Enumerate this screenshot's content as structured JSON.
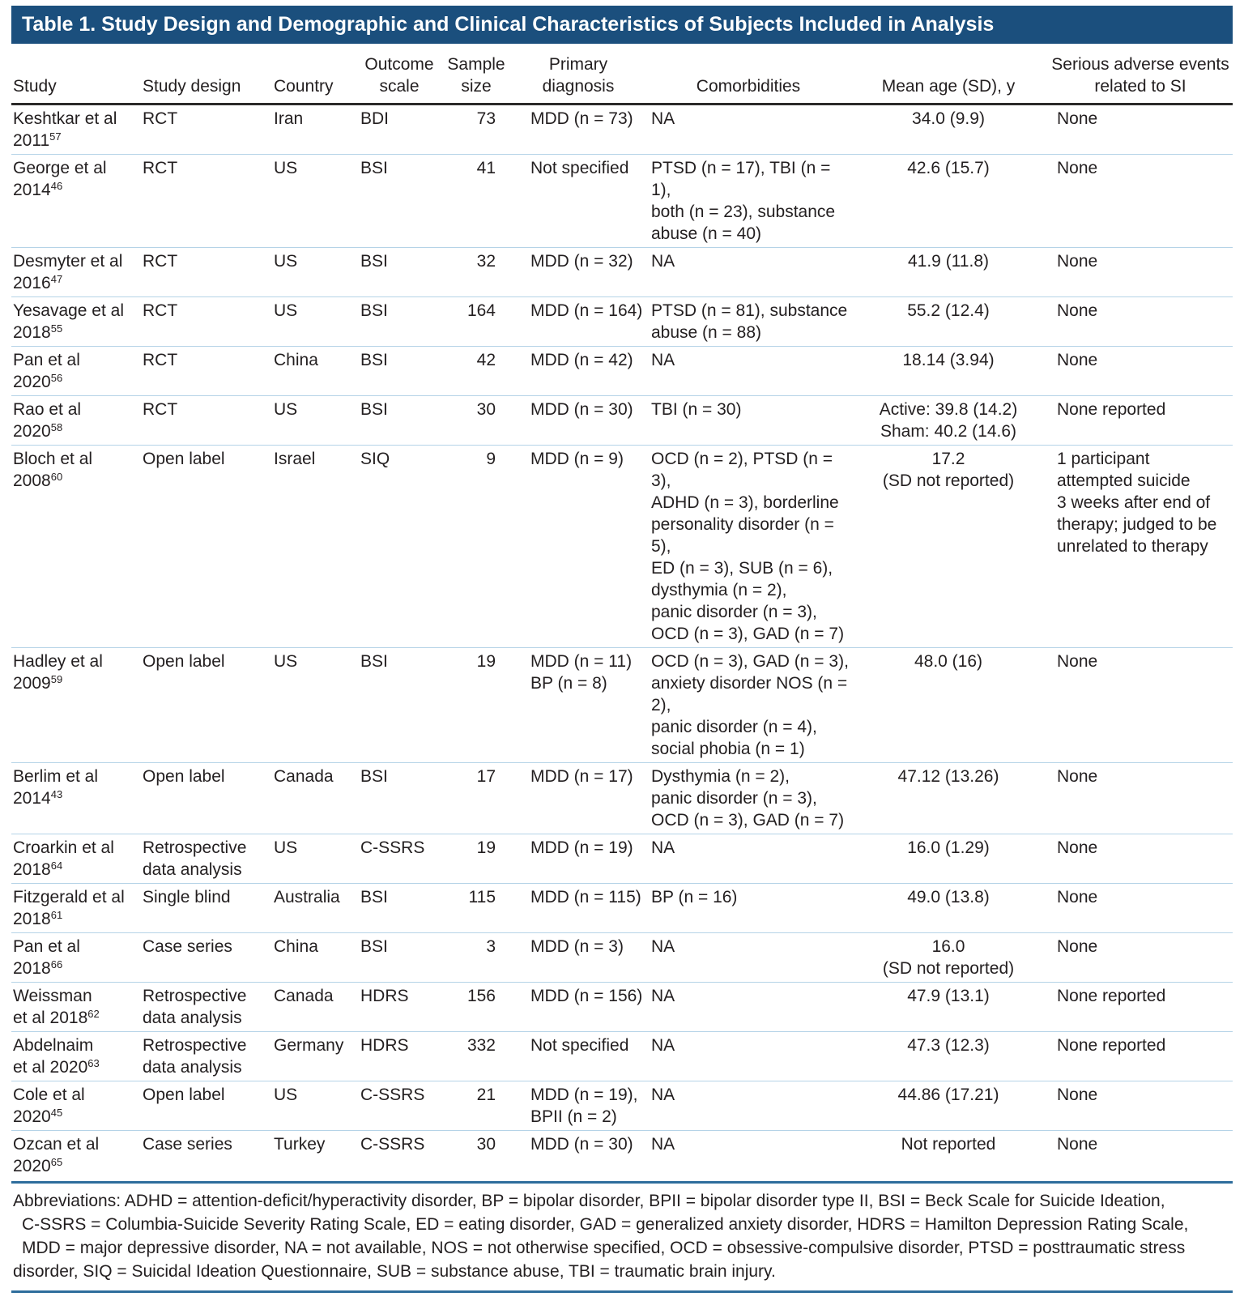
{
  "title": "Table 1. Study Design and Demographic and Clinical Characteristics of Subjects Included in Analysis",
  "table": {
    "columns": [
      {
        "key": "study",
        "label": "Study"
      },
      {
        "key": "design",
        "label": "Study design"
      },
      {
        "key": "country",
        "label": "Country"
      },
      {
        "key": "scale",
        "label": "Outcome\nscale"
      },
      {
        "key": "n",
        "label": "Sample\nsize"
      },
      {
        "key": "dx",
        "label": "Primary\ndiagnosis"
      },
      {
        "key": "comorb",
        "label": "Comorbidities"
      },
      {
        "key": "age",
        "label": "Mean age (SD), y"
      },
      {
        "key": "adverse",
        "label": "Serious adverse events\nrelated to SI"
      }
    ],
    "rows": [
      {
        "study": "Keshtkar et al\n2011",
        "ref": "57",
        "design": "RCT",
        "country": "Iran",
        "scale": "BDI",
        "n": "73",
        "dx": "MDD (n = 73)",
        "comorb": "NA",
        "age": "34.0 (9.9)",
        "adverse": "None"
      },
      {
        "study": "George et al\n2014",
        "ref": "46",
        "design": "RCT",
        "country": "US",
        "scale": "BSI",
        "n": "41",
        "dx": "Not specified",
        "comorb": "PTSD (n = 17), TBI (n = 1),\nboth (n = 23), substance\nabuse (n = 40)",
        "age": "42.6 (15.7)",
        "adverse": "None"
      },
      {
        "study": "Desmyter et al\n2016",
        "ref": "47",
        "design": "RCT",
        "country": "US",
        "scale": "BSI",
        "n": "32",
        "dx": "MDD (n = 32)",
        "comorb": "NA",
        "age": "41.9 (11.8)",
        "adverse": "None"
      },
      {
        "study": "Yesavage et al\n2018",
        "ref": "55",
        "design": "RCT",
        "country": "US",
        "scale": "BSI",
        "n": "164",
        "dx": "MDD (n = 164)",
        "comorb": "PTSD (n = 81), substance\nabuse (n = 88)",
        "age": "55.2 (12.4)",
        "adverse": "None"
      },
      {
        "study": "Pan et al\n2020",
        "ref": "56",
        "design": "RCT",
        "country": "China",
        "scale": "BSI",
        "n": "42",
        "dx": "MDD (n = 42)",
        "comorb": "NA",
        "age": "18.14 (3.94)",
        "adverse": "None"
      },
      {
        "study": "Rao et al\n2020",
        "ref": "58",
        "design": "RCT",
        "country": "US",
        "scale": "BSI",
        "n": "30",
        "dx": "MDD (n = 30)",
        "comorb": "TBI (n = 30)",
        "age": "Active: 39.8 (14.2)\nSham: 40.2 (14.6)",
        "adverse": "None reported"
      },
      {
        "study": "Bloch et al\n2008",
        "ref": "60",
        "design": "Open label",
        "country": "Israel",
        "scale": "SIQ",
        "n": "9",
        "dx": "MDD (n = 9)",
        "comorb": "OCD (n = 2), PTSD (n = 3),\nADHD (n = 3), borderline\npersonality disorder (n = 5),\nED (n = 3), SUB (n = 6),\ndysthymia (n = 2),\npanic disorder (n = 3),\nOCD (n = 3), GAD (n = 7)",
        "age": "17.2\n(SD not reported)",
        "adverse": "1 participant\nattempted suicide\n3 weeks after end of\ntherapy; judged to be\nunrelated to therapy"
      },
      {
        "study": "Hadley et al\n2009",
        "ref": "59",
        "design": "Open label",
        "country": "US",
        "scale": "BSI",
        "n": "19",
        "dx": "MDD (n = 11)\nBP (n = 8)",
        "comorb": "OCD (n = 3), GAD (n = 3),\nanxiety disorder NOS (n = 2),\npanic disorder (n = 4),\nsocial phobia (n = 1)",
        "age": "48.0 (16)",
        "adverse": "None"
      },
      {
        "study": "Berlim et al\n2014",
        "ref": "43",
        "design": "Open label",
        "country": "Canada",
        "scale": "BSI",
        "n": "17",
        "dx": "MDD (n = 17)",
        "comorb": "Dysthymia (n = 2),\npanic disorder (n = 3),\nOCD (n = 3), GAD (n = 7)",
        "age": "47.12 (13.26)",
        "adverse": "None"
      },
      {
        "study": "Croarkin et al\n2018",
        "ref": "64",
        "design": "Retrospective\ndata analysis",
        "country": "US",
        "scale": "C-SSRS",
        "n": "19",
        "dx": "MDD (n = 19)",
        "comorb": "NA",
        "age": "16.0 (1.29)",
        "adverse": "None"
      },
      {
        "study": "Fitzgerald et al\n2018",
        "ref": "61",
        "design": "Single blind",
        "country": "Australia",
        "scale": "BSI",
        "n": "115",
        "dx": "MDD (n = 115)",
        "comorb": "BP (n = 16)",
        "age": "49.0 (13.8)",
        "adverse": "None"
      },
      {
        "study": "Pan et al\n2018",
        "ref": "66",
        "design": "Case series",
        "country": "China",
        "scale": "BSI",
        "n": "3",
        "dx": "MDD (n = 3)",
        "comorb": "NA",
        "age": "16.0\n(SD not reported)",
        "adverse": "None"
      },
      {
        "study": "Weissman\net al 2018",
        "ref": "62",
        "design": "Retrospective\ndata analysis",
        "country": "Canada",
        "scale": "HDRS",
        "n": "156",
        "dx": "MDD (n = 156)",
        "comorb": "NA",
        "age": "47.9 (13.1)",
        "adverse": "None reported"
      },
      {
        "study": "Abdelnaim\net al 2020",
        "ref": "63",
        "design": "Retrospective\ndata analysis",
        "country": "Germany",
        "scale": "HDRS",
        "n": "332",
        "dx": "Not specified",
        "comorb": "NA",
        "age": "47.3 (12.3)",
        "adverse": "None reported"
      },
      {
        "study": "Cole et al\n2020",
        "ref": "45",
        "design": "Open label",
        "country": "US",
        "scale": "C-SSRS",
        "n": "21",
        "dx": "MDD (n = 19),\nBPII (n = 2)",
        "comorb": "NA",
        "age": "44.86 (17.21)",
        "adverse": "None"
      },
      {
        "study": "Ozcan et al\n2020",
        "ref": "65",
        "design": "Case series",
        "country": "Turkey",
        "scale": "C-SSRS",
        "n": "30",
        "dx": "MDD (n = 30)",
        "comorb": "NA",
        "age": "Not reported",
        "adverse": "None"
      }
    ]
  },
  "footnote": {
    "lines": [
      {
        "text": "Abbreviations: ADHD = attention-deficit/hyperactivity disorder, BP = bipolar disorder, BPII = bipolar disorder type II, BSI = Beck Scale for Suicide Ideation,",
        "indent": false
      },
      {
        "text": "C-SSRS = Columbia-Suicide Severity Rating Scale, ED = eating disorder, GAD = generalized anxiety disorder, HDRS = Hamilton Depression Rating Scale,",
        "indent": true
      },
      {
        "text": "MDD = major depressive disorder, NA = not available, NOS = not otherwise specified, OCD = obsessive-compulsive disorder, PTSD = posttraumatic stress",
        "indent": true
      },
      {
        "text": "disorder, SIQ = Suicidal Ideation Questionnaire, SUB = substance abuse, TBI = traumatic brain injury.",
        "indent": false
      }
    ]
  },
  "colors": {
    "title_bar": "#1b4f7d",
    "rule_dark": "#2b2a29",
    "rule_blue": "#2e6d9c",
    "row_separator": "#b5d3e7",
    "text": "#231f20",
    "title_text": "#ffffff"
  }
}
